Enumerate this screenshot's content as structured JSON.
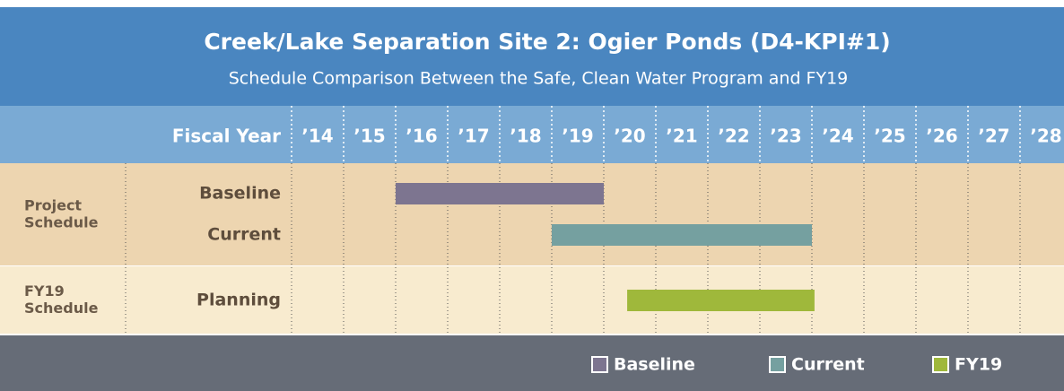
{
  "chart_data": {
    "type": "gantt",
    "title": "Creek/Lake Separation Site 2: Ogier Ponds (D4-KPI#1)",
    "subtitle": "Schedule Comparison Between the Safe, Clean Water Program and FY19",
    "x_label": "Fiscal Year",
    "xlim": [
      2014,
      2028.845
    ],
    "xticks": [
      {
        "value": 2014,
        "label": "’14"
      },
      {
        "value": 2015,
        "label": "’15"
      },
      {
        "value": 2016,
        "label": "’16"
      },
      {
        "value": 2017,
        "label": "’17"
      },
      {
        "value": 2018,
        "label": "’18"
      },
      {
        "value": 2019,
        "label": "’19"
      },
      {
        "value": 2020,
        "label": "’20"
      },
      {
        "value": 2021,
        "label": "’21"
      },
      {
        "value": 2022,
        "label": "’22"
      },
      {
        "value": 2023,
        "label": "’23"
      },
      {
        "value": 2024,
        "label": "’24"
      },
      {
        "value": 2025,
        "label": "’25"
      },
      {
        "value": 2026,
        "label": "’26"
      },
      {
        "value": 2027,
        "label": "’27"
      },
      {
        "value": 2028,
        "label": "’28"
      }
    ],
    "grid": true,
    "groups": [
      {
        "label": [
          "Project",
          "Schedule"
        ],
        "background": "#edd5b0",
        "rows": [
          {
            "label": "Baseline",
            "start": 2016,
            "end": 2020,
            "color": "#7d7590"
          },
          {
            "label": "Current",
            "start": 2019,
            "end": 2024,
            "color": "#75a0a0"
          }
        ]
      },
      {
        "label": [
          "FY19",
          "Schedule"
        ],
        "background": "#f8ebcf",
        "rows": [
          {
            "label": "Planning",
            "start": 2020.45,
            "end": 2024.05,
            "color": "#9fb83b"
          }
        ]
      }
    ],
    "legend": [
      {
        "name": "Baseline",
        "color": "#7d7590"
      },
      {
        "name": "Current",
        "color": "#75a0a0"
      },
      {
        "name": "FY19",
        "color": "#9fb83b"
      }
    ]
  }
}
